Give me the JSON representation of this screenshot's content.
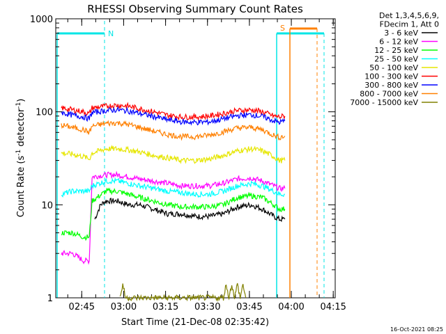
{
  "chart_data": {
    "type": "line",
    "title": "RHESSI Observing Summary Count Rates",
    "xlabel": "Start Time (21-Dec-08 02:35:42)",
    "ylabel": "Count Rate (s⁻¹ detector⁻¹)",
    "ylabel_parts": [
      "Count Rate (s",
      "-1",
      " detector",
      "-1",
      ")"
    ],
    "y_scale": "log",
    "ylim": [
      1,
      1000
    ],
    "xlim_minutes": [
      0,
      100
    ],
    "y_ticks": [
      {
        "value": 1,
        "label": "1"
      },
      {
        "value": 10,
        "label": "10"
      },
      {
        "value": 100,
        "label": "100"
      },
      {
        "value": 1000,
        "label": "1000"
      }
    ],
    "x_ticks": [
      {
        "minutes": 9.3,
        "label": "02:45"
      },
      {
        "minutes": 24.3,
        "label": "03:00"
      },
      {
        "minutes": 39.3,
        "label": "03:15"
      },
      {
        "minutes": 54.3,
        "label": "03:30"
      },
      {
        "minutes": 69.3,
        "label": "03:45"
      },
      {
        "minutes": 84.3,
        "label": "04:00"
      },
      {
        "minutes": 99.3,
        "label": "04:15"
      }
    ],
    "legend": {
      "position": "top-right",
      "header": [
        "Det 1,3,4,5,6,9,",
        "FDecim 1, Att 0"
      ]
    },
    "series": [
      {
        "name": "3 - 6 keV",
        "color": "#000000",
        "points": [
          [
            14,
            7
          ],
          [
            16,
            10
          ],
          [
            18,
            11
          ],
          [
            22,
            11
          ],
          [
            26,
            10
          ],
          [
            30,
            10
          ],
          [
            35,
            9
          ],
          [
            40,
            8
          ],
          [
            45,
            8
          ],
          [
            50,
            7.5
          ],
          [
            55,
            7.5
          ],
          [
            60,
            8
          ],
          [
            65,
            9.5
          ],
          [
            70,
            10
          ],
          [
            74,
            9
          ],
          [
            78,
            7.5
          ],
          [
            80,
            7
          ],
          [
            82,
            7
          ]
        ]
      },
      {
        "name": "6 - 12 keV",
        "color": "#ff00ff",
        "points": [
          [
            2,
            3
          ],
          [
            6,
            3
          ],
          [
            10,
            2.5
          ],
          [
            12,
            2.5
          ],
          [
            13,
            20
          ],
          [
            18,
            21
          ],
          [
            22,
            21
          ],
          [
            26,
            20
          ],
          [
            30,
            19
          ],
          [
            35,
            18
          ],
          [
            40,
            17
          ],
          [
            45,
            16
          ],
          [
            50,
            16
          ],
          [
            55,
            16
          ],
          [
            60,
            17
          ],
          [
            65,
            19
          ],
          [
            70,
            19.5
          ],
          [
            74,
            18
          ],
          [
            78,
            16
          ],
          [
            80,
            15
          ],
          [
            82,
            15
          ]
        ]
      },
      {
        "name": "12 - 25 keV",
        "color": "#00ff00",
        "points": [
          [
            2,
            5
          ],
          [
            6,
            5
          ],
          [
            10,
            4.5
          ],
          [
            12,
            4.5
          ],
          [
            13,
            11
          ],
          [
            18,
            14
          ],
          [
            22,
            14
          ],
          [
            26,
            13
          ],
          [
            30,
            12
          ],
          [
            35,
            11
          ],
          [
            40,
            10
          ],
          [
            45,
            9.5
          ],
          [
            50,
            9.5
          ],
          [
            55,
            9.5
          ],
          [
            60,
            10
          ],
          [
            65,
            12
          ],
          [
            70,
            12.5
          ],
          [
            74,
            12
          ],
          [
            78,
            10
          ],
          [
            80,
            9
          ],
          [
            82,
            9
          ]
        ]
      },
      {
        "name": "25 - 50 keV",
        "color": "#00ffff",
        "points": [
          [
            2,
            13
          ],
          [
            6,
            14
          ],
          [
            10,
            14
          ],
          [
            12,
            14
          ],
          [
            13,
            16
          ],
          [
            18,
            18
          ],
          [
            22,
            18
          ],
          [
            26,
            17
          ],
          [
            30,
            16
          ],
          [
            35,
            15
          ],
          [
            40,
            14
          ],
          [
            45,
            13.5
          ],
          [
            50,
            13
          ],
          [
            55,
            13
          ],
          [
            60,
            14
          ],
          [
            65,
            16
          ],
          [
            70,
            17
          ],
          [
            74,
            16
          ],
          [
            78,
            14
          ],
          [
            80,
            13
          ],
          [
            82,
            13
          ]
        ]
      },
      {
        "name": "50 - 100 keV",
        "color": "#e6e600",
        "points": [
          [
            2,
            36
          ],
          [
            6,
            35
          ],
          [
            10,
            33
          ],
          [
            12,
            31
          ],
          [
            13,
            36
          ],
          [
            18,
            40
          ],
          [
            22,
            40
          ],
          [
            26,
            39
          ],
          [
            30,
            37
          ],
          [
            35,
            34
          ],
          [
            40,
            32
          ],
          [
            45,
            30
          ],
          [
            50,
            30
          ],
          [
            55,
            31
          ],
          [
            60,
            34
          ],
          [
            65,
            38
          ],
          [
            70,
            40
          ],
          [
            74,
            38
          ],
          [
            78,
            33
          ],
          [
            80,
            30
          ],
          [
            82,
            30
          ]
        ]
      },
      {
        "name": "100 - 300 keV",
        "color": "#ff0000",
        "points": [
          [
            2,
            110
          ],
          [
            6,
            105
          ],
          [
            10,
            100
          ],
          [
            12,
            95
          ],
          [
            13,
            110
          ],
          [
            18,
            115
          ],
          [
            22,
            118
          ],
          [
            26,
            115
          ],
          [
            30,
            108
          ],
          [
            35,
            100
          ],
          [
            40,
            92
          ],
          [
            45,
            88
          ],
          [
            50,
            88
          ],
          [
            55,
            90
          ],
          [
            60,
            96
          ],
          [
            65,
            103
          ],
          [
            70,
            105
          ],
          [
            74,
            100
          ],
          [
            78,
            90
          ],
          [
            80,
            88
          ],
          [
            82,
            90
          ]
        ]
      },
      {
        "name": "300 - 800 keV",
        "color": "#0000ff",
        "points": [
          [
            2,
            98
          ],
          [
            6,
            92
          ],
          [
            10,
            88
          ],
          [
            12,
            84
          ],
          [
            13,
            98
          ],
          [
            18,
            103
          ],
          [
            22,
            105
          ],
          [
            26,
            102
          ],
          [
            30,
            96
          ],
          [
            35,
            89
          ],
          [
            40,
            82
          ],
          [
            45,
            78
          ],
          [
            50,
            77
          ],
          [
            55,
            78
          ],
          [
            60,
            84
          ],
          [
            65,
            91
          ],
          [
            70,
            93
          ],
          [
            74,
            89
          ],
          [
            78,
            80
          ],
          [
            80,
            77
          ],
          [
            82,
            80
          ]
        ]
      },
      {
        "name": "800 - 7000 keV",
        "color": "#ff8000",
        "points": [
          [
            2,
            72
          ],
          [
            6,
            68
          ],
          [
            10,
            64
          ],
          [
            12,
            60
          ],
          [
            13,
            70
          ],
          [
            18,
            75
          ],
          [
            22,
            76
          ],
          [
            26,
            73
          ],
          [
            30,
            68
          ],
          [
            35,
            62
          ],
          [
            40,
            57
          ],
          [
            45,
            54
          ],
          [
            50,
            54
          ],
          [
            55,
            56
          ],
          [
            60,
            61
          ],
          [
            65,
            67
          ],
          [
            70,
            68
          ],
          [
            74,
            64
          ],
          [
            78,
            56
          ],
          [
            80,
            53
          ],
          [
            82,
            55
          ]
        ]
      },
      {
        "name": "7000 - 15000 keV",
        "color": "#808000",
        "points": [
          [
            23,
            1
          ],
          [
            24,
            1.4
          ],
          [
            25,
            1
          ],
          [
            60,
            1
          ],
          [
            61,
            1.4
          ],
          [
            62,
            1
          ],
          [
            63,
            1.4
          ],
          [
            64,
            1
          ],
          [
            65,
            1.4
          ],
          [
            66,
            1
          ],
          [
            67,
            1.4
          ],
          [
            68,
            1
          ]
        ]
      }
    ],
    "annotations": [
      {
        "label": "N",
        "color": "#00e6e6"
      },
      {
        "label": "S",
        "color": "#ff8000"
      }
    ]
  },
  "footer": {
    "timestamp": "16-Oct-2021 08:25"
  }
}
